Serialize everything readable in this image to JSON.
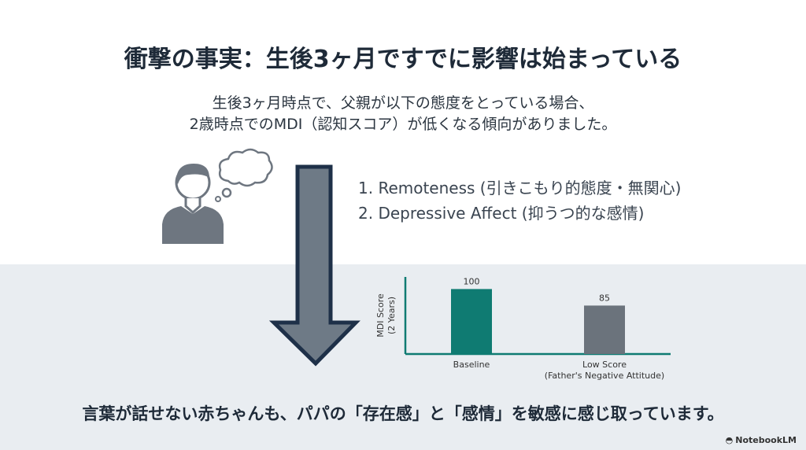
{
  "title": "衝撃の事実：生後3ヶ月ですでに影響は始まっている",
  "subtitle": [
    "生後3ヶ月時点で、父親が以下の態度をとっている場合、",
    "2歳時点でのMDI（認知スコア）が低くなる傾向がありました。"
  ],
  "list": [
    "1. Remoteness (引きこもり的態度・無関心)",
    "2. Depressive Affect (抑うつ的な感情)"
  ],
  "bottom_message": "言葉が話せない赤ちゃんも、パパの「存在感」と「感情」を敏感に感じ取っています。",
  "logo": "NotebookLM",
  "icons": {
    "person": "person-thinking-icon",
    "arrow": "down-arrow-icon"
  },
  "colors": {
    "accent": "#0f7b72",
    "gray_bar": "#6b737c",
    "arrow_fill": "#6e7a86",
    "arrow_stroke": "#1e3048"
  },
  "chart_data": {
    "type": "bar",
    "categories": [
      "Baseline",
      "Low Score\n(Father's Negative Attitude)"
    ],
    "category_lines": [
      [
        "Baseline"
      ],
      [
        "Low Score",
        "(Father's Negative Attitude)"
      ]
    ],
    "values": [
      100,
      85
    ],
    "data_labels": [
      "100",
      "85"
    ],
    "ylabel": [
      "MDI Score",
      "(2 Years)"
    ],
    "ylim": [
      41,
      111
    ],
    "grid": false,
    "bar_colors": [
      "#0f7b72",
      "#6b737c"
    ]
  }
}
